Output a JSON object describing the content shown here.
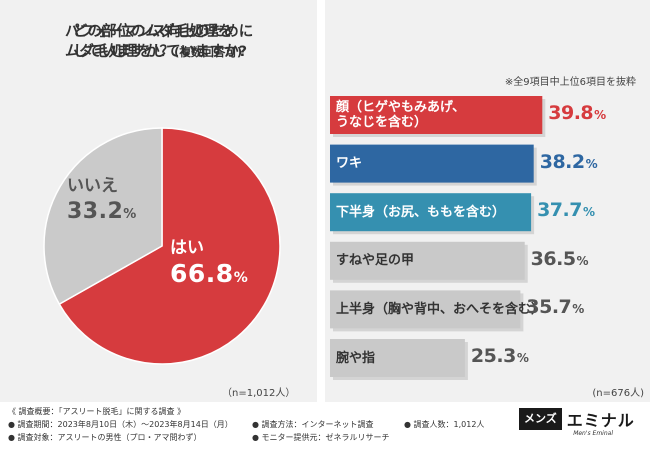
{
  "chart_data": [
    {
      "type": "pie",
      "title": [
        "パフォーマンス向上のために",
        "ムダ毛処理をしていますか?"
      ],
      "slices": [
        {
          "label": "はい",
          "value": 66.8,
          "value_text": "66.8",
          "color": "#d63b3e"
        },
        {
          "label": "いいえ",
          "value": 33.2,
          "value_text": "33.2",
          "color": "#cacaca"
        }
      ],
      "note": "（n=1,012人）"
    },
    {
      "type": "bar",
      "orientation": "horizontal",
      "title": [
        "どの部位のムダ毛処理を",
        "していますか？"
      ],
      "title_suffix": "(複数回答可)",
      "subnote": "※全9項目中上位6項目を抜粋",
      "xlim": [
        0,
        45
      ],
      "categories": [
        [
          "顔（ヒゲやもみあげ、",
          "うなじを含む）"
        ],
        [
          "ワキ"
        ],
        [
          "下半身（お尻、ももを含む）"
        ],
        [
          "すねや足の甲"
        ],
        [
          "上半身（胸や背中、おへそを含む）"
        ],
        [
          "腕や指"
        ]
      ],
      "values": [
        39.8,
        38.2,
        37.7,
        36.5,
        35.7,
        25.3
      ],
      "value_texts": [
        "39.8",
        "38.2",
        "37.7",
        "36.5",
        "35.7",
        "25.3"
      ],
      "colors": [
        "#d63b3e",
        "#2e67a2",
        "#3590b0",
        "#c9c9c9",
        "#c9c9c9",
        "#c9c9c9"
      ],
      "label_colors": [
        "#ffffff",
        "#ffffff",
        "#ffffff",
        "#333333",
        "#333333",
        "#333333"
      ],
      "value_colors": [
        "#d63b3e",
        "#2e67a2",
        "#3590b0",
        "#555555",
        "#555555",
        "#555555"
      ],
      "note": "(n=676人)"
    }
  ],
  "pct_symbol": "%",
  "footer": {
    "summary": "《 調査概要：「アスリート脱毛」に関する調査 》",
    "period": "● 調査期間：2023年8月10日（木）〜2023年8月14日（月）",
    "method": "● 調査方法：インターネット調査",
    "people": "● 調査人数：1,012人",
    "target": "● 調査対象：アスリートの男性（プロ・アマ問わず）",
    "monitor": "● モニター提供元：ゼネラルリサーチ"
  },
  "logo": {
    "box": "メンズ",
    "word": "エミナル",
    "sub": "Men's Eminal"
  }
}
